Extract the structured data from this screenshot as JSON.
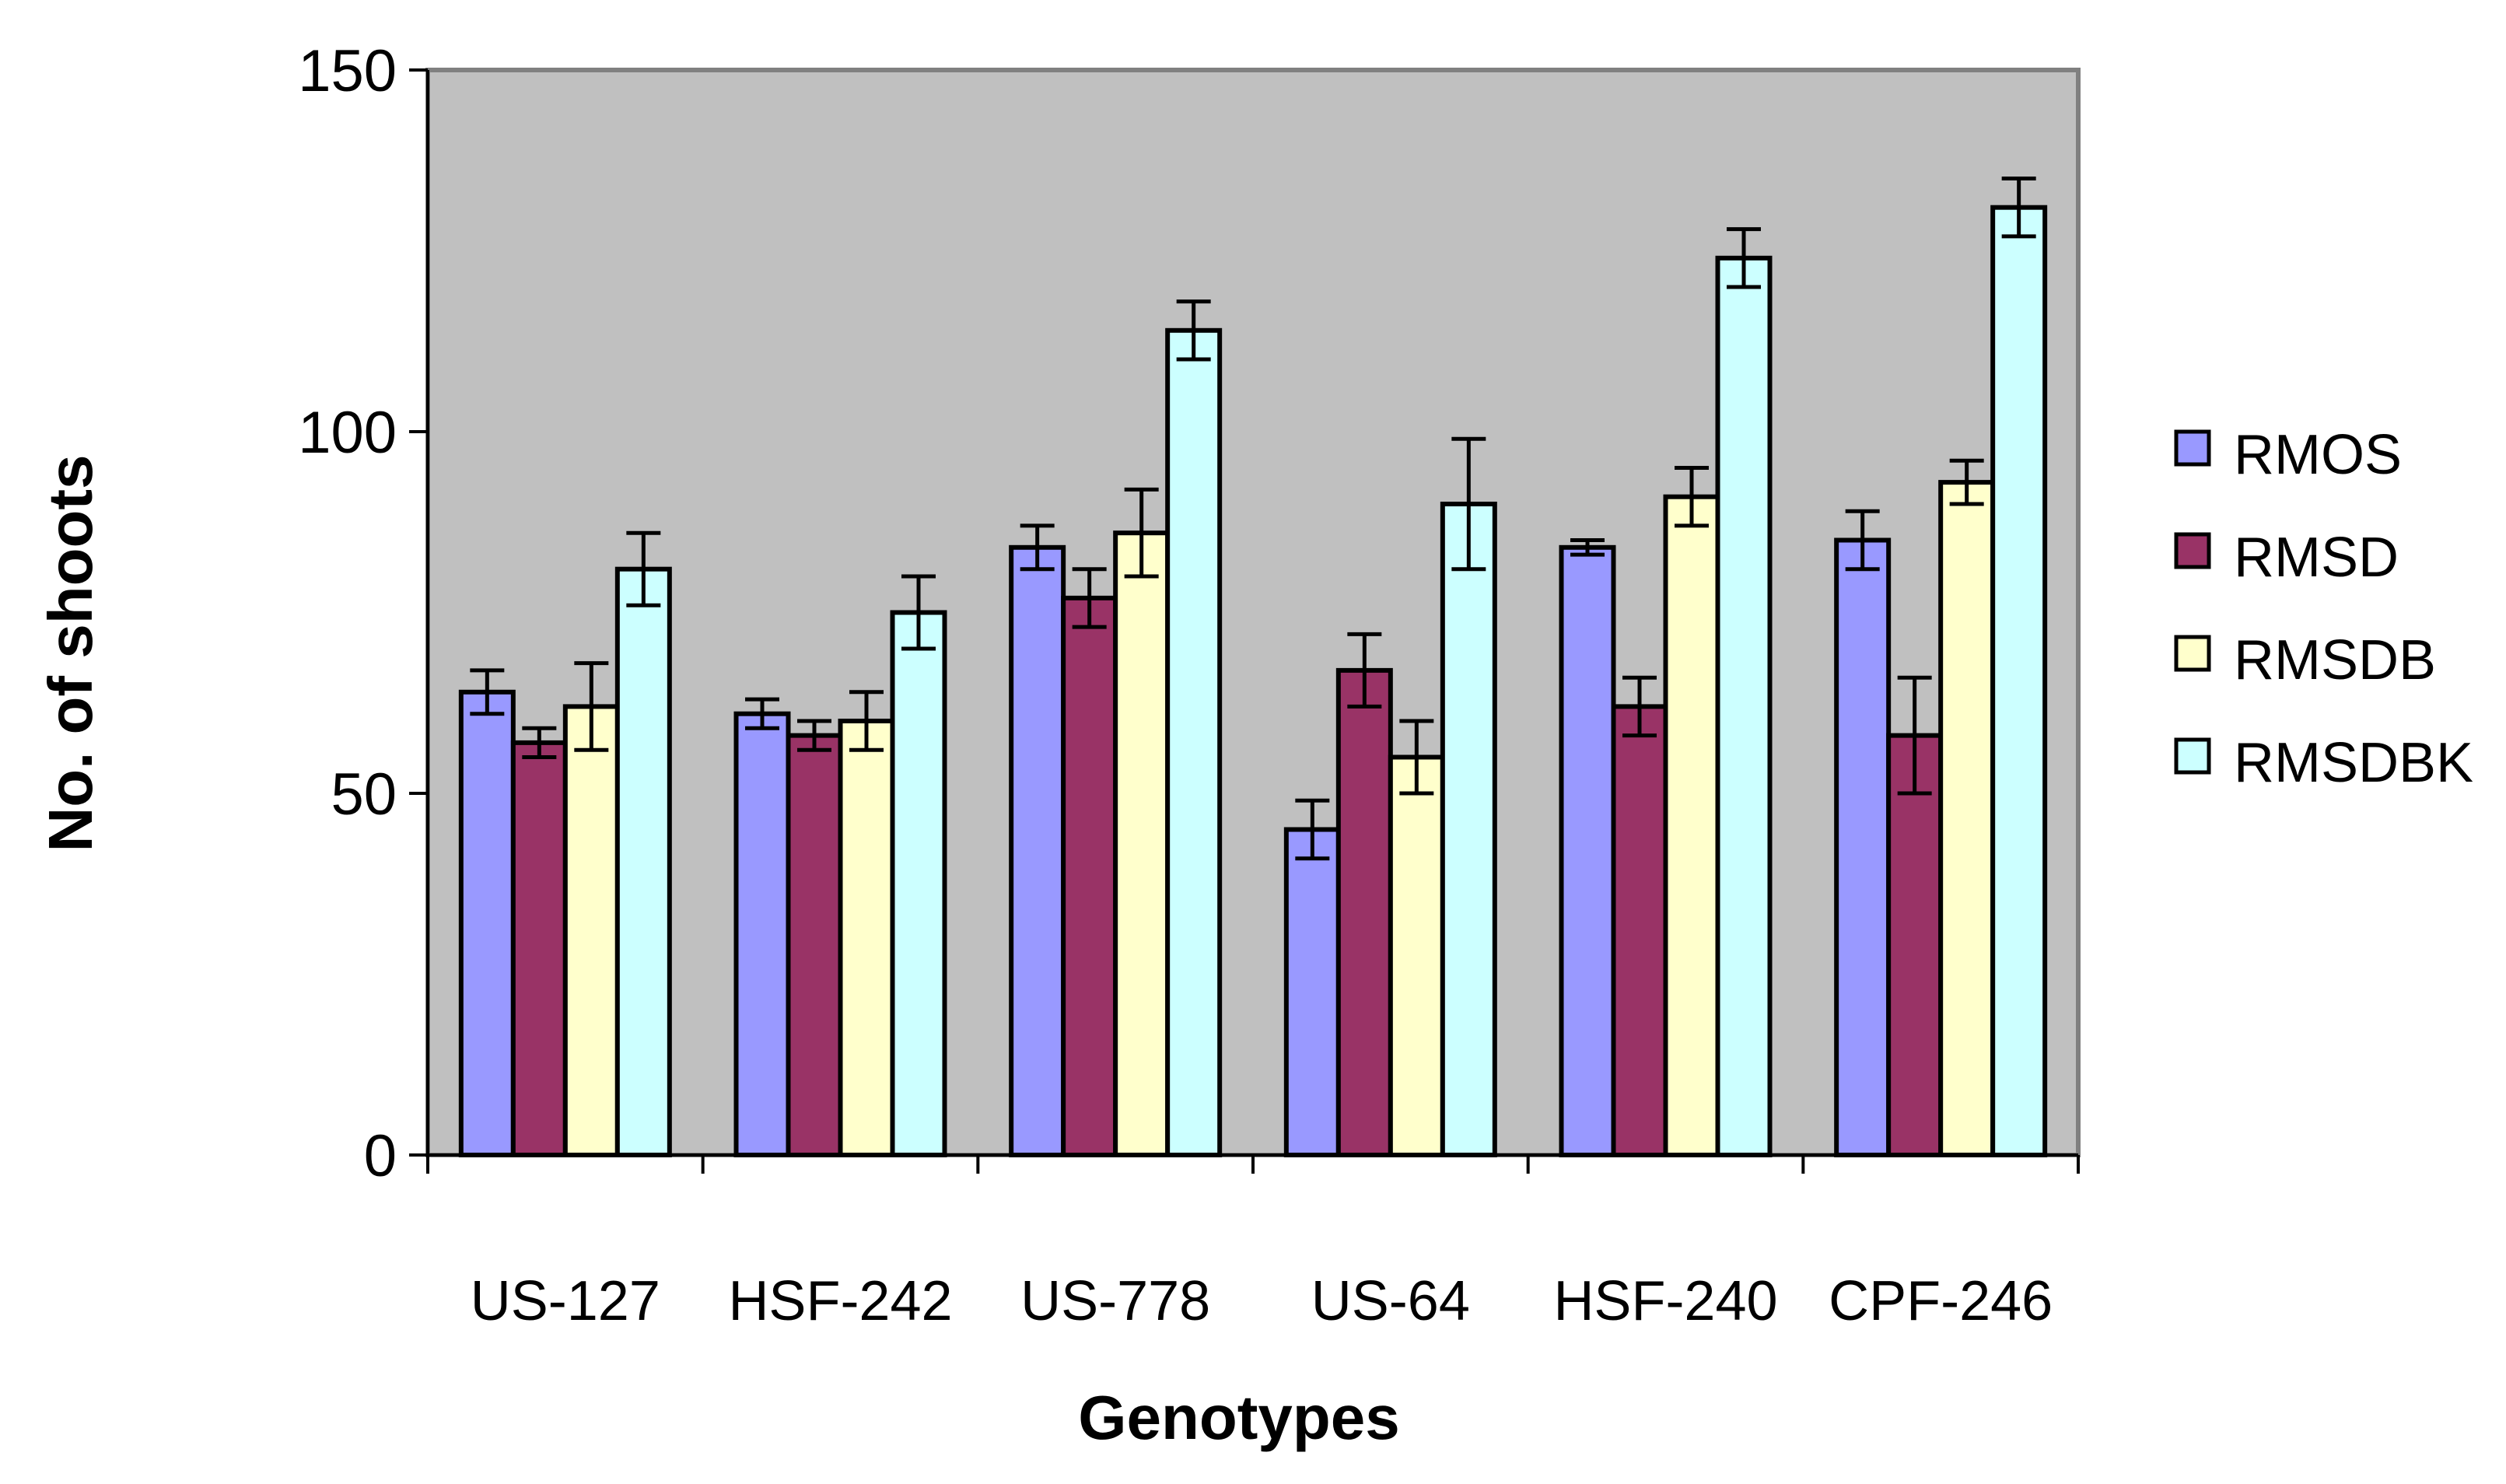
{
  "chart_data": {
    "type": "bar",
    "title": "",
    "xlabel": "Genotypes",
    "ylabel": "No. of shoots",
    "ylim": [
      0,
      150
    ],
    "yticks": [
      0,
      50,
      100,
      150
    ],
    "grid": false,
    "legend_position": "right",
    "categories": [
      "US-127",
      "HSF-242",
      "US-778",
      "US-64",
      "HSF-240",
      "CPF-246"
    ],
    "series": [
      {
        "name": "RMOS",
        "color": "#9999ff",
        "values": [
          64,
          61,
          84,
          45,
          84,
          85
        ],
        "errors": [
          3,
          2,
          3,
          4,
          1,
          4
        ]
      },
      {
        "name": "RMSD",
        "color": "#993366",
        "values": [
          57,
          58,
          77,
          67,
          62,
          58
        ],
        "errors": [
          2,
          2,
          4,
          5,
          4,
          8
        ]
      },
      {
        "name": "RMSDB",
        "color": "#ffffcc",
        "values": [
          62,
          60,
          86,
          55,
          91,
          93
        ],
        "errors": [
          6,
          4,
          6,
          5,
          4,
          3
        ]
      },
      {
        "name": "RMSDBK",
        "color": "#ccffff",
        "values": [
          81,
          75,
          114,
          90,
          124,
          131
        ],
        "errors": [
          5,
          5,
          4,
          9,
          4,
          4
        ]
      }
    ],
    "plot_background": "#c0c0c0"
  }
}
